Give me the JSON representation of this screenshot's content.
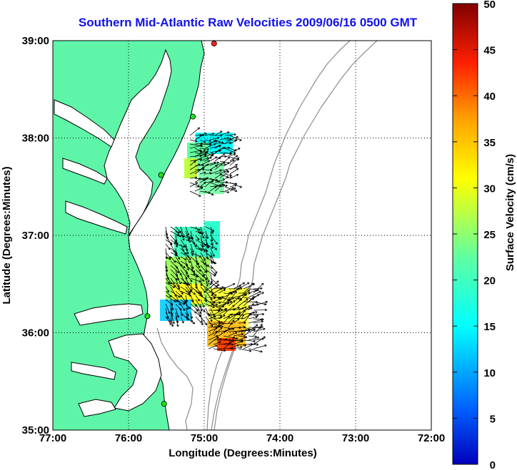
{
  "title": "Southern Mid-Atlantic Raw Velocities 2009/06/16 0500 GMT",
  "xlabel": "Longitude (Degrees:Minutes)",
  "ylabel": "Latitude (Degrees:Minutes)",
  "colorbar": {
    "label": "Surface Velocity (cm/s)",
    "ticks": [
      "0",
      "5",
      "10",
      "15",
      "20",
      "25",
      "30",
      "35",
      "40",
      "45",
      "50"
    ],
    "range": [
      0,
      50
    ],
    "colormap": "jet"
  },
  "map": {
    "lon_ticks": [
      "77:00",
      "76:00",
      "75:00",
      "74:00",
      "73:00",
      "72:00"
    ],
    "lat_ticks": [
      "39:00",
      "38:00",
      "37:00",
      "36:00",
      "35:00"
    ],
    "lon_range": [
      -77,
      -72
    ],
    "lat_range": [
      35,
      39
    ],
    "grid": "dotted",
    "land_color": "#5ff5a8",
    "water_color": "#ffffff",
    "isobath_color": "#8c8c8c"
  },
  "chart_data": {
    "type": "vector-field",
    "units": "cm/s",
    "stations": [
      {
        "lon": -74.87,
        "lat": 38.97,
        "color": "#ff2020"
      },
      {
        "lon": -75.15,
        "lat": 38.22,
        "color": "#20e020"
      },
      {
        "lon": -75.57,
        "lat": 37.62,
        "color": "#20e020"
      },
      {
        "lon": -75.75,
        "lat": 36.17,
        "color": "#20e020"
      },
      {
        "lon": -75.53,
        "lat": 35.27,
        "color": "#20e020"
      }
    ]
  }
}
